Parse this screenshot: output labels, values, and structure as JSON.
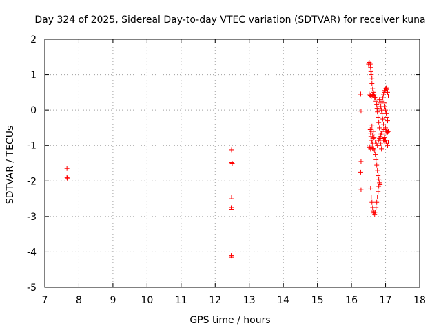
{
  "chart_data": {
    "type": "scatter",
    "title": "Day 324 of 2025, Sidereal Day-to-day VTEC variation (SDTVAR) for receiver kuna",
    "xlabel": "GPS time / hours",
    "ylabel": "SDTVAR / TECUs",
    "xlim": [
      7,
      18
    ],
    "ylim": [
      -5,
      2
    ],
    "xticks": [
      7,
      8,
      9,
      10,
      11,
      12,
      13,
      14,
      15,
      16,
      17,
      18
    ],
    "yticks": [
      -5,
      -4,
      -3,
      -2,
      -1,
      0,
      1,
      2
    ],
    "grid": true,
    "marker": "+",
    "colors": {
      "series": "#ff0000",
      "grid": "#a0a0a0",
      "axes": "#000000"
    },
    "series": [
      {
        "name": "SDTVAR",
        "points": [
          [
            7.65,
            -1.65
          ],
          [
            7.65,
            -1.9
          ],
          [
            7.66,
            -1.92
          ],
          [
            12.48,
            -1.12
          ],
          [
            12.49,
            -1.15
          ],
          [
            12.49,
            -1.48
          ],
          [
            12.5,
            -1.5
          ],
          [
            12.48,
            -2.45
          ],
          [
            12.49,
            -2.5
          ],
          [
            12.47,
            -2.75
          ],
          [
            12.49,
            -2.8
          ],
          [
            12.47,
            -4.1
          ],
          [
            12.49,
            -4.15
          ],
          [
            16.27,
            0.45
          ],
          [
            16.28,
            -0.03
          ],
          [
            16.28,
            -1.45
          ],
          [
            16.27,
            -1.75
          ],
          [
            16.28,
            -2.25
          ],
          [
            16.5,
            1.3
          ],
          [
            16.52,
            1.35
          ],
          [
            16.55,
            1.3
          ],
          [
            16.56,
            1.2
          ],
          [
            16.57,
            1.1
          ],
          [
            16.58,
            1.0
          ],
          [
            16.6,
            0.9
          ],
          [
            16.6,
            0.75
          ],
          [
            16.62,
            0.6
          ],
          [
            16.64,
            0.5
          ],
          [
            16.66,
            0.45
          ],
          [
            16.68,
            0.4
          ],
          [
            16.7,
            0.35
          ],
          [
            16.72,
            0.25
          ],
          [
            16.74,
            0.15
          ],
          [
            16.75,
            0.05
          ],
          [
            16.76,
            -0.05
          ],
          [
            16.78,
            -0.2
          ],
          [
            16.8,
            -0.35
          ],
          [
            16.82,
            -0.5
          ],
          [
            16.84,
            -0.65
          ],
          [
            16.85,
            -0.8
          ],
          [
            16.86,
            -0.95
          ],
          [
            16.88,
            -1.1
          ],
          [
            16.52,
            0.45
          ],
          [
            16.55,
            0.42
          ],
          [
            16.58,
            0.38
          ],
          [
            16.62,
            0.44
          ],
          [
            16.65,
            0.42
          ],
          [
            16.68,
            0.36
          ],
          [
            16.55,
            -0.55
          ],
          [
            16.56,
            -0.65
          ],
          [
            16.57,
            -0.75
          ],
          [
            16.58,
            -0.85
          ],
          [
            16.6,
            -0.9
          ],
          [
            16.62,
            -0.95
          ],
          [
            16.63,
            -0.8
          ],
          [
            16.58,
            -0.6
          ],
          [
            16.6,
            -0.45
          ],
          [
            16.62,
            -0.7
          ],
          [
            16.64,
            -0.6
          ],
          [
            16.66,
            -0.78
          ],
          [
            16.53,
            -1.05
          ],
          [
            16.56,
            -1.1
          ],
          [
            16.58,
            -1.05
          ],
          [
            16.62,
            -1.08
          ],
          [
            16.65,
            -1.1
          ],
          [
            16.68,
            -1.15
          ],
          [
            16.7,
            -1.25
          ],
          [
            16.72,
            -1.4
          ],
          [
            16.74,
            -1.55
          ],
          [
            16.76,
            -1.7
          ],
          [
            16.78,
            -1.85
          ],
          [
            16.8,
            -1.95
          ],
          [
            16.82,
            -2.05
          ],
          [
            16.84,
            -2.1
          ],
          [
            16.8,
            -2.15
          ],
          [
            16.56,
            -2.2
          ],
          [
            16.58,
            -2.45
          ],
          [
            16.6,
            -2.6
          ],
          [
            16.62,
            -2.75
          ],
          [
            16.64,
            -2.85
          ],
          [
            16.66,
            -2.9
          ],
          [
            16.68,
            -2.95
          ],
          [
            16.7,
            -2.88
          ],
          [
            16.72,
            -2.75
          ],
          [
            16.74,
            -2.6
          ],
          [
            16.76,
            -2.45
          ],
          [
            16.78,
            -2.3
          ],
          [
            16.8,
            -0.85
          ],
          [
            16.82,
            -0.8
          ],
          [
            16.84,
            -0.75
          ],
          [
            16.86,
            -0.7
          ],
          [
            16.88,
            -0.65
          ],
          [
            16.9,
            -0.6
          ],
          [
            16.82,
            0.3
          ],
          [
            16.84,
            0.2
          ],
          [
            16.86,
            0.1
          ],
          [
            16.88,
            0.0
          ],
          [
            16.9,
            -0.1
          ],
          [
            16.92,
            -0.25
          ],
          [
            16.94,
            -0.4
          ],
          [
            16.95,
            -0.55
          ],
          [
            16.96,
            -0.7
          ],
          [
            16.98,
            -0.85
          ],
          [
            16.9,
            0.25
          ],
          [
            16.92,
            0.35
          ],
          [
            16.94,
            0.45
          ],
          [
            16.96,
            0.5
          ],
          [
            16.98,
            0.55
          ],
          [
            17.0,
            0.6
          ],
          [
            17.02,
            0.62
          ],
          [
            17.04,
            0.58
          ],
          [
            17.06,
            0.5
          ],
          [
            17.08,
            0.4
          ],
          [
            16.96,
            0.2
          ],
          [
            16.98,
            0.1
          ],
          [
            17.0,
            0.0
          ],
          [
            17.02,
            -0.1
          ],
          [
            17.04,
            -0.2
          ],
          [
            17.06,
            -0.3
          ],
          [
            17.0,
            -0.5
          ],
          [
            17.02,
            -0.6
          ],
          [
            17.04,
            -0.65
          ],
          [
            17.06,
            -0.62
          ],
          [
            17.08,
            -0.6
          ],
          [
            17.0,
            -0.85
          ],
          [
            17.02,
            -0.9
          ],
          [
            17.04,
            -0.95
          ],
          [
            17.06,
            -1.0
          ],
          [
            17.08,
            -0.9
          ],
          [
            16.9,
            -0.8
          ],
          [
            16.94,
            -0.85
          ],
          [
            16.97,
            -0.78
          ],
          [
            16.7,
            -0.9
          ],
          [
            16.73,
            -0.95
          ],
          [
            16.76,
            -1.0
          ]
        ]
      }
    ]
  }
}
